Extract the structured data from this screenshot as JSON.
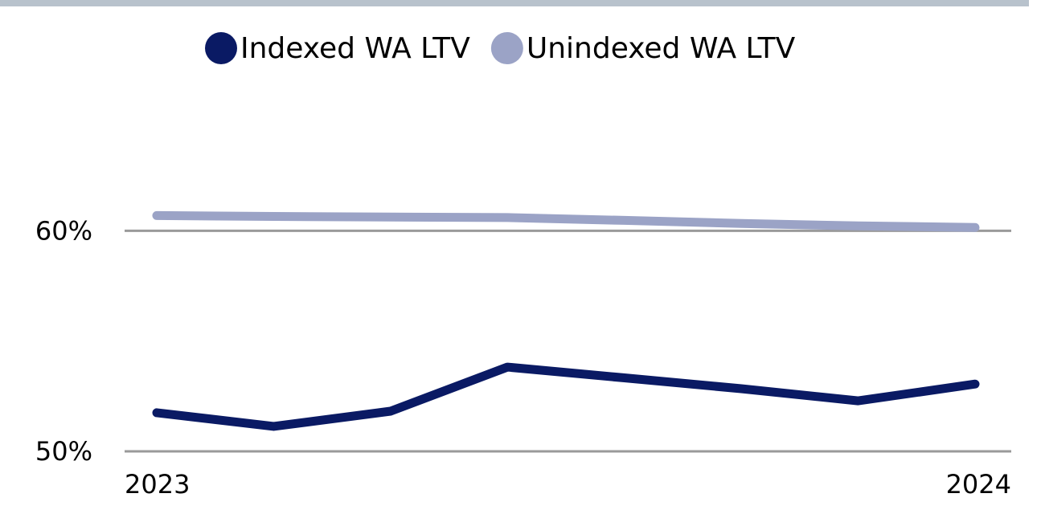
{
  "chart_data": {
    "type": "line",
    "categories": [
      "2023",
      null,
      null,
      null,
      null,
      null,
      null,
      "2024"
    ],
    "series": [
      {
        "name": "Indexed WA LTV",
        "color": "#0a1a64",
        "values": [
          51.75,
          51.13,
          51.82,
          53.82,
          53.33,
          52.84,
          52.29,
          53.05
        ]
      },
      {
        "name": "Unindexed WA LTV",
        "color": "#9ba3c6",
        "values": [
          60.69,
          60.65,
          60.62,
          60.6,
          60.47,
          60.33,
          60.22,
          60.15
        ]
      }
    ],
    "ylim": [
      50,
      65
    ],
    "yticks": [
      {
        "value": 50,
        "label": "50%"
      },
      {
        "value": 60,
        "label": "60%"
      }
    ],
    "grid": true,
    "legend": "top"
  }
}
